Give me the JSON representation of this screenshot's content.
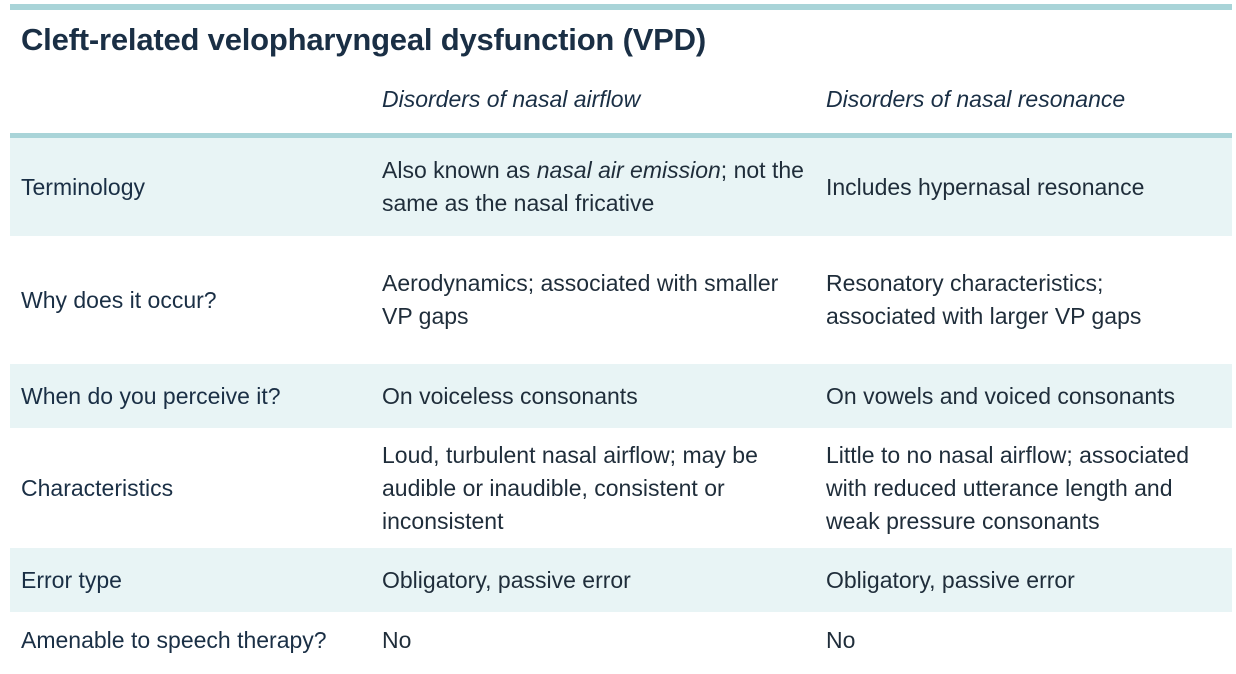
{
  "title": "Cleft-related velopharyngeal dysfunction (VPD)",
  "columns": {
    "airflow": "Disorders of nasal airflow",
    "resonance": "Disorders of nasal resonance"
  },
  "rows": [
    {
      "label": "Terminology",
      "airflow_pre": "Also known as ",
      "airflow_em": "nasal air emission",
      "airflow_post": "; not the same as the nasal fricative",
      "resonance": "Includes hypernasal resonance"
    },
    {
      "label": "Why does it occur?",
      "airflow": "Aerodynamics; associated with smaller VP gaps",
      "resonance": "Resonatory characteristics; associated with larger VP gaps"
    },
    {
      "label": "When do you perceive it?",
      "airflow": "On voiceless consonants",
      "resonance": "On vowels and voiced consonants"
    },
    {
      "label": "Characteristics",
      "airflow": "Loud, turbulent nasal airflow; may be audible or inaudible, consistent or inconsistent",
      "resonance": "Little to no nasal airflow; associated with reduced utterance length and weak pressure consonants"
    },
    {
      "label": "Error type",
      "airflow": "Obligatory, passive error",
      "resonance": "Obligatory, passive error"
    },
    {
      "label": "Amenable to speech therapy?",
      "airflow": "No",
      "resonance": "No"
    }
  ]
}
